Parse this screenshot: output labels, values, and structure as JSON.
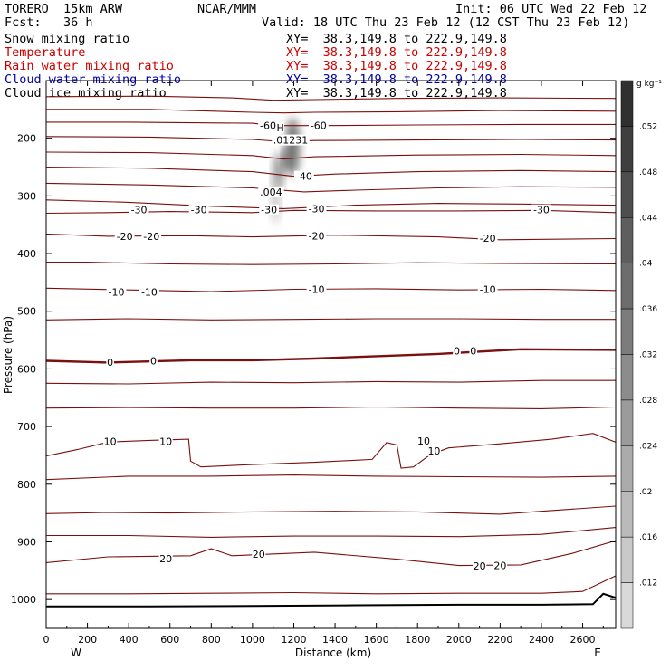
{
  "header": {
    "model": "TORERO  15km ARW",
    "org": "NCAR/MMM",
    "init": "Init: 06 UTC Wed 22 Feb 12",
    "fcst": "Fcst:   36 h",
    "valid": "Valid: 18 UTC Thu 23 Feb 12 (12 CST Thu 23 Feb 12)",
    "fields": [
      {
        "name": "Snow mixing ratio",
        "xy": "XY=  38.3,149.8 to 222.9,149.8",
        "color": "#000000"
      },
      {
        "name": "Temperature",
        "xy": "XY=  38.3,149.8 to 222.9,149.8",
        "color": "#cc0000"
      },
      {
        "name": "Rain water mixing ratio",
        "xy": "XY=  38.3,149.8 to 222.9,149.8",
        "color": "#cc0000"
      },
      {
        "name": "Cloud water mixing ratio",
        "xy": "XY=  38.3,149.8 to 222.9,149.8",
        "color": "#0000aa"
      },
      {
        "name": "Cloud ice mixing ratio",
        "xy": "XY=  38.3,149.8 to 222.9,149.8",
        "color": "#000000"
      }
    ]
  },
  "chart_data": {
    "type": "contour",
    "xlabel": "Distance (km)",
    "ylabel": "Pressure (hPa)",
    "x_ticks": [
      0,
      200,
      400,
      600,
      800,
      1000,
      1200,
      1400,
      1600,
      1800,
      2000,
      2200,
      2400,
      2600
    ],
    "y_ticks": [
      200,
      300,
      400,
      500,
      600,
      700,
      800,
      900,
      1000
    ],
    "xlim": [
      0,
      2760
    ],
    "ylim": [
      1050,
      100
    ],
    "x_end_labels": {
      "left": "W",
      "right": "E"
    },
    "colorbar": {
      "unit": "g kg⁻¹",
      "tick_labels": [
        ".052",
        ".048",
        ".044",
        ".04",
        ".036",
        ".032",
        ".028",
        ".024",
        ".02",
        ".016",
        ".012"
      ],
      "levels": [
        0.056,
        0.052,
        0.048,
        0.044,
        0.04,
        0.036,
        0.032,
        0.028,
        0.024,
        0.02,
        0.016,
        0.012,
        0.008
      ]
    },
    "contour_labels": [
      {
        "text": "-60",
        "x": 1075,
        "p": 178
      },
      {
        "text": "-60",
        "x": 1320,
        "p": 178
      },
      {
        "text": "H",
        "x": 1135,
        "p": 182
      },
      {
        "text": ".01231",
        "x": 1185,
        "p": 203
      },
      {
        "text": ".004",
        "x": 1090,
        "p": 293
      },
      {
        "text": "-40",
        "x": 1250,
        "p": 266
      },
      {
        "text": "-30",
        "x": 450,
        "p": 324
      },
      {
        "text": "-30",
        "x": 740,
        "p": 324
      },
      {
        "text": "-30",
        "x": 1080,
        "p": 324
      },
      {
        "text": "-30",
        "x": 1310,
        "p": 322
      },
      {
        "text": "-30",
        "x": 2400,
        "p": 324
      },
      {
        "text": "-20",
        "x": 380,
        "p": 370
      },
      {
        "text": "-20",
        "x": 510,
        "p": 370
      },
      {
        "text": "-20",
        "x": 1310,
        "p": 369
      },
      {
        "text": "-20",
        "x": 2140,
        "p": 373
      },
      {
        "text": "-10",
        "x": 340,
        "p": 467
      },
      {
        "text": "-10",
        "x": 500,
        "p": 467
      },
      {
        "text": "-10",
        "x": 1310,
        "p": 462
      },
      {
        "text": "-10",
        "x": 2140,
        "p": 462
      },
      {
        "text": "0",
        "x": 310,
        "p": 588
      },
      {
        "text": "0",
        "x": 520,
        "p": 586
      },
      {
        "text": "0",
        "x": 1990,
        "p": 569
      },
      {
        "text": "0",
        "x": 2070,
        "p": 569
      },
      {
        "text": "10",
        "x": 310,
        "p": 726
      },
      {
        "text": "10",
        "x": 580,
        "p": 726
      },
      {
        "text": "10",
        "x": 1830,
        "p": 725
      },
      {
        "text": "10",
        "x": 1880,
        "p": 742
      },
      {
        "text": "20",
        "x": 580,
        "p": 929
      },
      {
        "text": "20",
        "x": 1030,
        "p": 921
      },
      {
        "text": "20",
        "x": 2100,
        "p": 942
      },
      {
        "text": "20",
        "x": 2200,
        "p": 941
      }
    ],
    "isotherms": [
      {
        "temp": -60,
        "pts": [
          [
            0,
            128
          ],
          [
            500,
            127
          ],
          [
            900,
            130
          ],
          [
            1100,
            134
          ],
          [
            1300,
            133
          ],
          [
            1700,
            131
          ],
          [
            2200,
            130
          ],
          [
            2760,
            131
          ]
        ]
      },
      {
        "temp": -60,
        "pts": [
          [
            0,
            150
          ],
          [
            500,
            150
          ],
          [
            1000,
            155
          ],
          [
            1150,
            156
          ],
          [
            1300,
            155
          ],
          [
            1700,
            154
          ],
          [
            2200,
            152
          ],
          [
            2760,
            153
          ]
        ]
      },
      {
        "temp": -60,
        "pts": [
          [
            0,
            172
          ],
          [
            400,
            172
          ],
          [
            1000,
            174
          ],
          [
            1100,
            178
          ],
          [
            1350,
            178
          ],
          [
            1800,
            177
          ],
          [
            2300,
            176
          ],
          [
            2760,
            176
          ]
        ]
      },
      {
        "temp": -50,
        "pts": [
          [
            0,
            197
          ],
          [
            500,
            198
          ],
          [
            1000,
            202
          ],
          [
            1150,
            206
          ],
          [
            1300,
            204
          ],
          [
            1800,
            203
          ],
          [
            2300,
            202
          ],
          [
            2760,
            203
          ]
        ]
      },
      {
        "temp": -50,
        "pts": [
          [
            0,
            224
          ],
          [
            500,
            225
          ],
          [
            1000,
            230
          ],
          [
            1150,
            236
          ],
          [
            1300,
            232
          ],
          [
            1800,
            229
          ],
          [
            2300,
            228
          ],
          [
            2760,
            230
          ]
        ]
      },
      {
        "temp": -40,
        "pts": [
          [
            0,
            250
          ],
          [
            500,
            252
          ],
          [
            1000,
            258
          ],
          [
            1200,
            266
          ],
          [
            1400,
            262
          ],
          [
            1800,
            258
          ],
          [
            2300,
            256
          ],
          [
            2760,
            258
          ]
        ]
      },
      {
        "temp": -40,
        "pts": [
          [
            0,
            278
          ],
          [
            500,
            281
          ],
          [
            1000,
            286
          ],
          [
            1250,
            293
          ],
          [
            1500,
            290
          ],
          [
            1900,
            286
          ],
          [
            2300,
            284
          ],
          [
            2760,
            285
          ]
        ]
      },
      {
        "temp": -30,
        "pts": [
          [
            0,
            307
          ],
          [
            400,
            311
          ],
          [
            800,
            318
          ],
          [
            1150,
            322
          ],
          [
            1500,
            316
          ],
          [
            1900,
            313
          ],
          [
            2300,
            314
          ],
          [
            2760,
            316
          ]
        ]
      },
      {
        "temp": -30,
        "pts": [
          [
            0,
            330
          ],
          [
            300,
            329
          ],
          [
            600,
            327
          ],
          [
            1000,
            329
          ],
          [
            1200,
            325
          ],
          [
            1600,
            326
          ],
          [
            2000,
            326
          ],
          [
            2400,
            325
          ],
          [
            2760,
            329
          ]
        ]
      },
      {
        "temp": -20,
        "pts": [
          [
            0,
            366
          ],
          [
            300,
            370
          ],
          [
            700,
            369
          ],
          [
            1000,
            371
          ],
          [
            1400,
            368
          ],
          [
            1900,
            371
          ],
          [
            2200,
            376
          ],
          [
            2760,
            374
          ]
        ]
      },
      {
        "temp": -10,
        "pts": [
          [
            0,
            415
          ],
          [
            200,
            415
          ],
          [
            600,
            418
          ],
          [
            1000,
            419
          ],
          [
            1400,
            418
          ],
          [
            1800,
            416
          ],
          [
            2200,
            417
          ],
          [
            2760,
            418
          ]
        ]
      },
      {
        "temp": -10,
        "pts": [
          [
            0,
            460
          ],
          [
            400,
            463
          ],
          [
            800,
            466
          ],
          [
            1200,
            462
          ],
          [
            1600,
            461
          ],
          [
            2000,
            463
          ],
          [
            2400,
            462
          ],
          [
            2760,
            464
          ]
        ]
      },
      {
        "temp": -10,
        "pts": [
          [
            0,
            515
          ],
          [
            400,
            513
          ],
          [
            800,
            515
          ],
          [
            1200,
            514
          ],
          [
            1600,
            513
          ],
          [
            2000,
            513
          ],
          [
            2400,
            514
          ],
          [
            2760,
            514
          ]
        ]
      },
      {
        "temp": 0,
        "bold": true,
        "pts": [
          [
            0,
            586
          ],
          [
            300,
            589
          ],
          [
            700,
            585
          ],
          [
            1000,
            585
          ],
          [
            1300,
            582
          ],
          [
            1600,
            578
          ],
          [
            1900,
            574
          ],
          [
            2300,
            566
          ],
          [
            2760,
            567
          ]
        ]
      },
      {
        "temp": 0,
        "pts": [
          [
            0,
            625
          ],
          [
            400,
            626
          ],
          [
            800,
            623
          ],
          [
            1200,
            624
          ],
          [
            1600,
            622
          ],
          [
            2000,
            623
          ],
          [
            2400,
            620
          ],
          [
            2760,
            620
          ]
        ]
      },
      {
        "temp": 0,
        "pts": [
          [
            0,
            668
          ],
          [
            400,
            667
          ],
          [
            800,
            668
          ],
          [
            1200,
            668
          ],
          [
            1600,
            666
          ],
          [
            2000,
            668
          ],
          [
            2400,
            669
          ],
          [
            2760,
            666
          ]
        ]
      },
      {
        "temp": 10,
        "pts": [
          [
            0,
            751
          ],
          [
            150,
            740
          ],
          [
            300,
            727
          ],
          [
            500,
            724
          ],
          [
            690,
            722
          ],
          [
            700,
            760
          ],
          [
            750,
            770
          ],
          [
            1000,
            766
          ],
          [
            1300,
            762
          ],
          [
            1580,
            757
          ],
          [
            1650,
            728
          ],
          [
            1700,
            732
          ],
          [
            1720,
            772
          ],
          [
            1780,
            770
          ],
          [
            1860,
            749
          ],
          [
            1950,
            737
          ],
          [
            2200,
            730
          ],
          [
            2450,
            722
          ],
          [
            2650,
            712
          ],
          [
            2760,
            727
          ]
        ]
      },
      {
        "temp": 10,
        "pts": [
          [
            0,
            792
          ],
          [
            400,
            786
          ],
          [
            800,
            786
          ],
          [
            1200,
            784
          ],
          [
            1600,
            786
          ],
          [
            2000,
            787
          ],
          [
            2400,
            788
          ],
          [
            2760,
            786
          ]
        ]
      },
      {
        "temp": 10,
        "pts": [
          [
            0,
            851
          ],
          [
            300,
            849
          ],
          [
            600,
            850
          ],
          [
            1000,
            848
          ],
          [
            1400,
            847
          ],
          [
            1800,
            848
          ],
          [
            2200,
            852
          ],
          [
            2400,
            847
          ],
          [
            2760,
            838
          ]
        ]
      },
      {
        "temp": 20,
        "pts": [
          [
            0,
            889
          ],
          [
            400,
            889
          ],
          [
            800,
            892
          ],
          [
            1200,
            890
          ],
          [
            1600,
            890
          ],
          [
            2000,
            891
          ],
          [
            2400,
            887
          ],
          [
            2760,
            875
          ]
        ]
      },
      {
        "temp": 20,
        "pts": [
          [
            0,
            936
          ],
          [
            300,
            926
          ],
          [
            700,
            924
          ],
          [
            800,
            912
          ],
          [
            900,
            924
          ],
          [
            1300,
            918
          ],
          [
            1700,
            930
          ],
          [
            2000,
            941
          ],
          [
            2300,
            940
          ],
          [
            2550,
            920
          ],
          [
            2760,
            898
          ]
        ]
      },
      {
        "temp": 20,
        "pts": [
          [
            0,
            990
          ],
          [
            400,
            990
          ],
          [
            800,
            989
          ],
          [
            1200,
            988
          ],
          [
            1600,
            990
          ],
          [
            2000,
            989
          ],
          [
            2400,
            989
          ],
          [
            2600,
            986
          ],
          [
            2760,
            959
          ]
        ]
      }
    ],
    "terrain": [
      [
        0,
        1012
      ],
      [
        500,
        1012
      ],
      [
        1000,
        1011
      ],
      [
        1500,
        1010
      ],
      [
        2000,
        1009
      ],
      [
        2400,
        1009
      ],
      [
        2650,
        1008
      ],
      [
        2700,
        990
      ],
      [
        2760,
        997
      ]
    ],
    "snow_plume": [
      {
        "x": 1195,
        "p": 215,
        "rx": 34,
        "rp": 50,
        "value": 0.035
      },
      {
        "x": 1125,
        "p": 258,
        "rx": 22,
        "rp": 34,
        "value": 0.03
      },
      {
        "x": 1112,
        "p": 308,
        "rx": 18,
        "rp": 40,
        "value": 0.016
      },
      {
        "x": 1165,
        "p": 238,
        "rx": 16,
        "rp": 22,
        "value": 0.04
      }
    ]
  }
}
